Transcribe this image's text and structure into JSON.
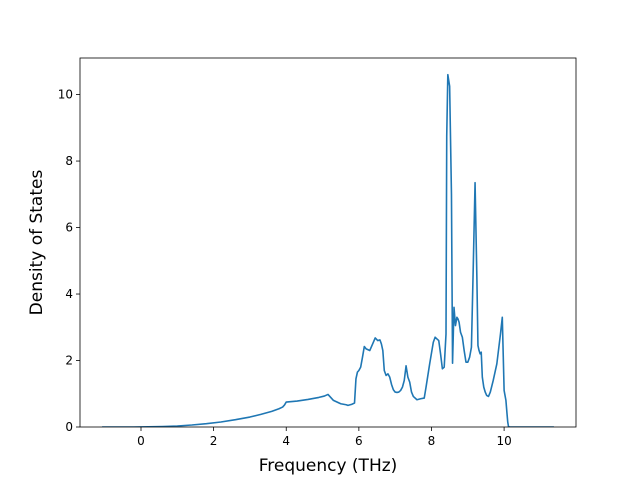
{
  "chart_data": {
    "type": "line",
    "title": "",
    "xlabel": "Frequency (THz)",
    "ylabel": "Density of States",
    "xlim": [
      -1.68,
      11.98
    ],
    "ylim": [
      0,
      11.1
    ],
    "x_ticks": [
      0,
      2,
      4,
      6,
      8,
      10
    ],
    "y_ticks": [
      0,
      2,
      4,
      6,
      8,
      10
    ],
    "x_tick_labels": [
      "0",
      "2",
      "4",
      "6",
      8,
      "10"
    ],
    "y_tick_labels": [
      "0",
      "2",
      "4",
      "6",
      "8",
      "10"
    ],
    "grid": false,
    "legend": "none",
    "series_color": "#1f77b4",
    "series": [
      {
        "x": [
          -1.05,
          -0.6,
          -0.2,
          0.2,
          0.6,
          1.0,
          1.4,
          1.8,
          2.2,
          2.6,
          3.0,
          3.3,
          3.6,
          3.8,
          3.9,
          3.95,
          4.0,
          4.3,
          4.6,
          4.9,
          5.05,
          5.15,
          5.3,
          5.5,
          5.65,
          5.7,
          5.8,
          5.88,
          5.92,
          5.96,
          6.0,
          6.05,
          6.1,
          6.15,
          6.2,
          6.3,
          6.4,
          6.45,
          6.52,
          6.58,
          6.62,
          6.66,
          6.7,
          6.75,
          6.8,
          6.85,
          6.9,
          6.95,
          7.0,
          7.05,
          7.1,
          7.15,
          7.2,
          7.25,
          7.3,
          7.35,
          7.4,
          7.45,
          7.5,
          7.6,
          7.7,
          7.8,
          7.85,
          7.95,
          8.05,
          8.1,
          8.15,
          8.2,
          8.25,
          8.3,
          8.35,
          8.4,
          8.42,
          8.45,
          8.5,
          8.55,
          8.58,
          8.62,
          8.66,
          8.7,
          8.73,
          8.76,
          8.8,
          8.85,
          8.9,
          8.95,
          9.0,
          9.05,
          9.1,
          9.15,
          9.2,
          9.25,
          9.28,
          9.31,
          9.34,
          9.37,
          9.4,
          9.44,
          9.48,
          9.52,
          9.57,
          9.62,
          9.7,
          9.8,
          9.9,
          9.95,
          10.0,
          10.05,
          10.08,
          10.1,
          10.12,
          10.15,
          10.2,
          10.25,
          10.3,
          10.35,
          10.45,
          10.6,
          10.8,
          11.0,
          11.35
        ],
        "y": [
          0.0,
          0.0,
          0.0,
          0.005,
          0.015,
          0.03,
          0.06,
          0.1,
          0.15,
          0.22,
          0.3,
          0.38,
          0.47,
          0.55,
          0.6,
          0.66,
          0.75,
          0.78,
          0.83,
          0.89,
          0.93,
          0.98,
          0.8,
          0.7,
          0.67,
          0.65,
          0.68,
          0.72,
          1.45,
          1.65,
          1.7,
          1.8,
          2.1,
          2.42,
          2.35,
          2.3,
          2.55,
          2.68,
          2.6,
          2.62,
          2.5,
          2.3,
          1.7,
          1.55,
          1.6,
          1.5,
          1.28,
          1.12,
          1.05,
          1.04,
          1.05,
          1.1,
          1.2,
          1.4,
          1.84,
          1.5,
          1.35,
          1.05,
          0.92,
          0.82,
          0.85,
          0.87,
          1.2,
          1.9,
          2.55,
          2.7,
          2.65,
          2.6,
          2.2,
          1.75,
          1.8,
          2.8,
          8.75,
          10.6,
          10.25,
          7.0,
          1.92,
          3.6,
          3.05,
          3.3,
          3.25,
          3.15,
          2.85,
          2.7,
          2.3,
          1.95,
          1.95,
          2.1,
          2.4,
          4.8,
          7.35,
          4.5,
          2.45,
          2.3,
          2.2,
          2.25,
          1.5,
          1.2,
          1.05,
          0.95,
          0.92,
          1.05,
          1.4,
          1.9,
          2.8,
          3.3,
          1.1,
          0.8,
          0.4,
          0.15,
          0.02,
          0.0,
          0.0,
          0.0,
          0.0,
          0.0,
          0.0,
          0.0,
          0.0,
          0.0,
          0.0
        ]
      }
    ]
  }
}
